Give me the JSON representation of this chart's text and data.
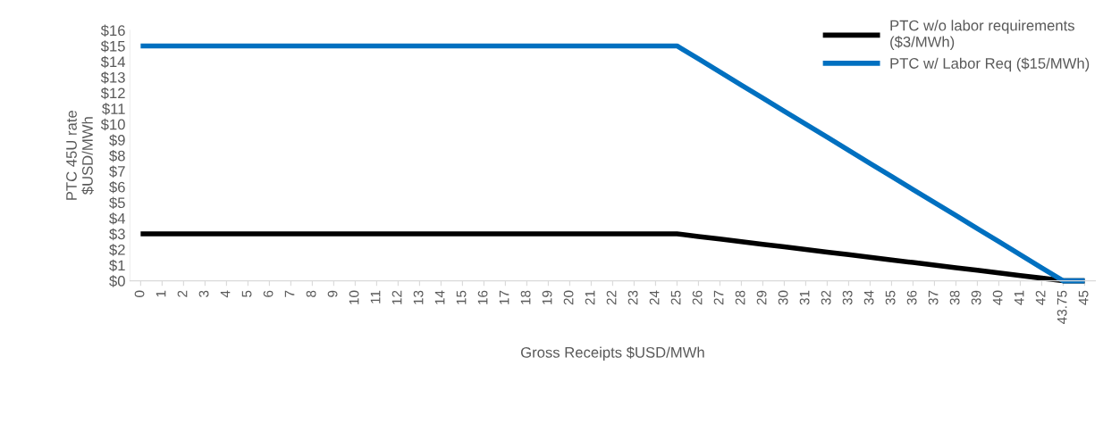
{
  "chart_data": {
    "type": "line",
    "xlabel": "Gross Receipts $USD/MWh",
    "ylabel": "PTC 45U rate\n$USD/MWh",
    "categories": [
      "0",
      "1",
      "2",
      "3",
      "4",
      "5",
      "6",
      "7",
      "8",
      "9",
      "10",
      "11",
      "12",
      "13",
      "14",
      "15",
      "16",
      "17",
      "18",
      "19",
      "20",
      "21",
      "22",
      "23",
      "24",
      "25",
      "26",
      "27",
      "28",
      "29",
      "30",
      "31",
      "32",
      "33",
      "34",
      "35",
      "36",
      "37",
      "38",
      "39",
      "40",
      "41",
      "42",
      "43.75",
      "45"
    ],
    "series": [
      {
        "name": "PTC w/o labor requirements\n($3/MWh)",
        "color": "#000000",
        "values": [
          3,
          3,
          3,
          3,
          3,
          3,
          3,
          3,
          3,
          3,
          3,
          3,
          3,
          3,
          3,
          3,
          3,
          3,
          3,
          3,
          3,
          3,
          3,
          3,
          3,
          3,
          2.83,
          2.67,
          2.5,
          2.33,
          2.17,
          2,
          1.83,
          1.67,
          1.5,
          1.33,
          1.17,
          1,
          0.83,
          0.67,
          0.5,
          0.33,
          0.17,
          0,
          0
        ]
      },
      {
        "name": "PTC w/ Labor Req ($15/MWh)",
        "color": "#0070c0",
        "values": [
          15,
          15,
          15,
          15,
          15,
          15,
          15,
          15,
          15,
          15,
          15,
          15,
          15,
          15,
          15,
          15,
          15,
          15,
          15,
          15,
          15,
          15,
          15,
          15,
          15,
          15,
          14.17,
          13.33,
          12.5,
          11.67,
          10.83,
          10,
          9.17,
          8.33,
          7.5,
          6.67,
          5.83,
          5,
          4.17,
          3.33,
          2.5,
          1.67,
          0.83,
          0,
          0
        ]
      }
    ],
    "ylim": [
      0,
      16
    ],
    "yticks": [
      {
        "value": 0,
        "label": "$0"
      },
      {
        "value": 1,
        "label": "$1"
      },
      {
        "value": 2,
        "label": "$2"
      },
      {
        "value": 3,
        "label": "$3"
      },
      {
        "value": 4,
        "label": "$4"
      },
      {
        "value": 5,
        "label": "$5"
      },
      {
        "value": 6,
        "label": "$6"
      },
      {
        "value": 7,
        "label": "$7"
      },
      {
        "value": 8,
        "label": "$8"
      },
      {
        "value": 9,
        "label": "$9"
      },
      {
        "value": 10,
        "label": "$10"
      },
      {
        "value": 11,
        "label": "$11"
      },
      {
        "value": 12,
        "label": "$12"
      },
      {
        "value": 13,
        "label": "$13"
      },
      {
        "value": 14,
        "label": "$14"
      },
      {
        "value": 15,
        "label": "$15"
      },
      {
        "value": 16,
        "label": "$16"
      }
    ],
    "legend": "top right",
    "grid": false,
    "marker": "none",
    "line_style": "solid"
  }
}
